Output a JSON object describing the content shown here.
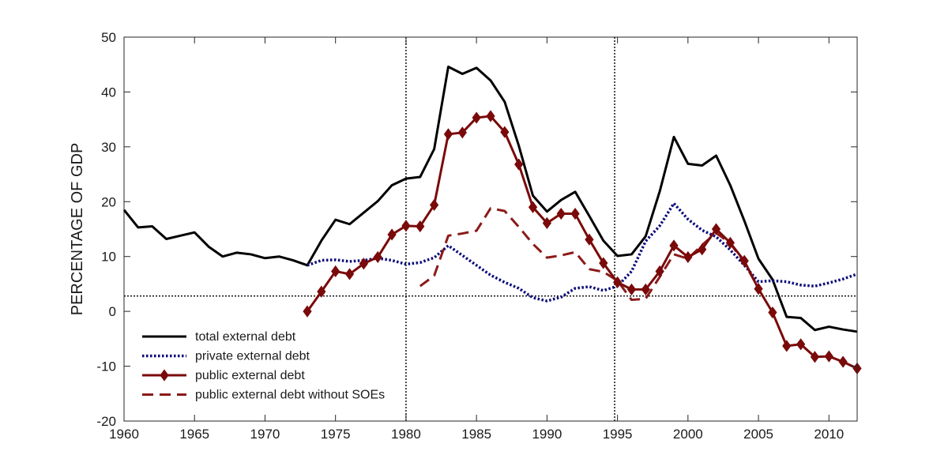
{
  "chart_data": {
    "type": "line",
    "title": "",
    "xlabel": "",
    "ylabel": "PERCENTAGE OF GDP",
    "xlim": [
      1960,
      2012
    ],
    "ylim": [
      -20,
      50
    ],
    "xticks": [
      1960,
      1965,
      1970,
      1975,
      1980,
      1985,
      1990,
      1995,
      2000,
      2005,
      2010
    ],
    "yticks": [
      -20,
      -10,
      0,
      10,
      20,
      30,
      40,
      50
    ],
    "grid": false,
    "legend_position": "bottom-left",
    "reference_lines": {
      "vertical": [
        1980,
        1994.8
      ],
      "horizontal": [
        2.8
      ]
    },
    "series": [
      {
        "name": "total external debt",
        "color": "#000000",
        "style": "solid",
        "marker": "none",
        "x": [
          1960,
          1961,
          1962,
          1963,
          1964,
          1965,
          1966,
          1967,
          1968,
          1969,
          1970,
          1971,
          1972,
          1973,
          1974,
          1975,
          1976,
          1977,
          1978,
          1979,
          1980,
          1981,
          1982,
          1983,
          1984,
          1985,
          1986,
          1987,
          1988,
          1989,
          1990,
          1991,
          1992,
          1993,
          1994,
          1995,
          1996,
          1997,
          1998,
          1999,
          2000,
          2001,
          2002,
          2003,
          2004,
          2005,
          2006,
          2007,
          2008,
          2009,
          2010,
          2011,
          2012
        ],
        "values": [
          18.5,
          15.3,
          15.5,
          13.2,
          13.8,
          14.4,
          11.8,
          10.0,
          10.7,
          10.4,
          9.7,
          10.0,
          9.3,
          8.4,
          12.9,
          16.7,
          15.9,
          18.0,
          20.1,
          23.0,
          24.2,
          24.5,
          29.6,
          44.6,
          43.3,
          44.4,
          42.1,
          38.2,
          30.2,
          21.1,
          18.2,
          20.3,
          21.8,
          17.4,
          12.9,
          10.1,
          10.4,
          13.7,
          21.9,
          31.8,
          26.9,
          26.6,
          28.4,
          23.0,
          16.5,
          9.6,
          5.8,
          -1.0,
          -1.2,
          -3.4,
          -2.8,
          -3.3,
          -3.7
        ]
      },
      {
        "name": "private external debt",
        "color": "#0b0b7a",
        "style": "dotted",
        "marker": "none",
        "x": [
          1973,
          1974,
          1975,
          1976,
          1977,
          1978,
          1979,
          1980,
          1981,
          1982,
          1983,
          1984,
          1985,
          1986,
          1987,
          1988,
          1989,
          1990,
          1991,
          1992,
          1993,
          1994,
          1995,
          1996,
          1997,
          1998,
          1999,
          2000,
          2001,
          2002,
          2003,
          2004,
          2005,
          2006,
          2007,
          2008,
          2009,
          2010,
          2011,
          2012
        ],
        "values": [
          8.4,
          9.3,
          9.4,
          9.1,
          9.3,
          9.7,
          9.3,
          8.6,
          8.9,
          9.8,
          12.0,
          10.2,
          8.4,
          6.6,
          5.3,
          4.2,
          2.5,
          1.9,
          2.6,
          4.2,
          4.5,
          3.8,
          4.6,
          7.3,
          12.8,
          15.6,
          19.7,
          16.8,
          14.8,
          13.6,
          11.2,
          8.4,
          5.4,
          5.6,
          5.4,
          4.8,
          4.6,
          5.2,
          5.9,
          6.8
        ]
      },
      {
        "name": "public external debt",
        "color": "#7a0a0a",
        "style": "solid",
        "marker": "diamond",
        "x": [
          1973,
          1974,
          1975,
          1976,
          1977,
          1978,
          1979,
          1980,
          1981,
          1982,
          1983,
          1984,
          1985,
          1986,
          1987,
          1988,
          1989,
          1990,
          1991,
          1992,
          1993,
          1994,
          1995,
          1996,
          1997,
          1998,
          1999,
          2000,
          2001,
          2002,
          2003,
          2004,
          2005,
          2006,
          2007,
          2008,
          2009,
          2010,
          2011,
          2012
        ],
        "values": [
          0.0,
          3.6,
          7.3,
          6.8,
          8.7,
          9.9,
          14.0,
          15.6,
          15.5,
          19.4,
          32.3,
          32.6,
          35.3,
          35.6,
          32.7,
          26.8,
          19.0,
          16.1,
          17.8,
          17.8,
          13.1,
          8.8,
          5.3,
          4.0,
          4.0,
          7.3,
          12.0,
          9.9,
          11.3,
          15.0,
          12.5,
          9.2,
          4.1,
          -0.2,
          -6.3,
          -6.0,
          -8.3,
          -8.2,
          -9.2,
          -10.4
        ]
      },
      {
        "name": "public external debt without SOEs",
        "color": "#8b1a1a",
        "style": "dashed",
        "marker": "none",
        "x": [
          1981,
          1982,
          1983,
          1984,
          1985,
          1986,
          1987,
          1988,
          1989,
          1990,
          1991,
          1992,
          1993,
          1994,
          1995,
          1996,
          1997,
          1998,
          1999,
          2000,
          2001,
          2002,
          2003,
          2004,
          2005
        ],
        "values": [
          4.6,
          6.5,
          13.8,
          14.2,
          14.7,
          18.8,
          18.3,
          15.4,
          12.3,
          9.8,
          10.2,
          10.8,
          7.7,
          7.2,
          5.6,
          2.1,
          2.3,
          6.3,
          10.4,
          9.6,
          12.1,
          14.3,
          12.4,
          8.9,
          4.2
        ]
      }
    ]
  }
}
